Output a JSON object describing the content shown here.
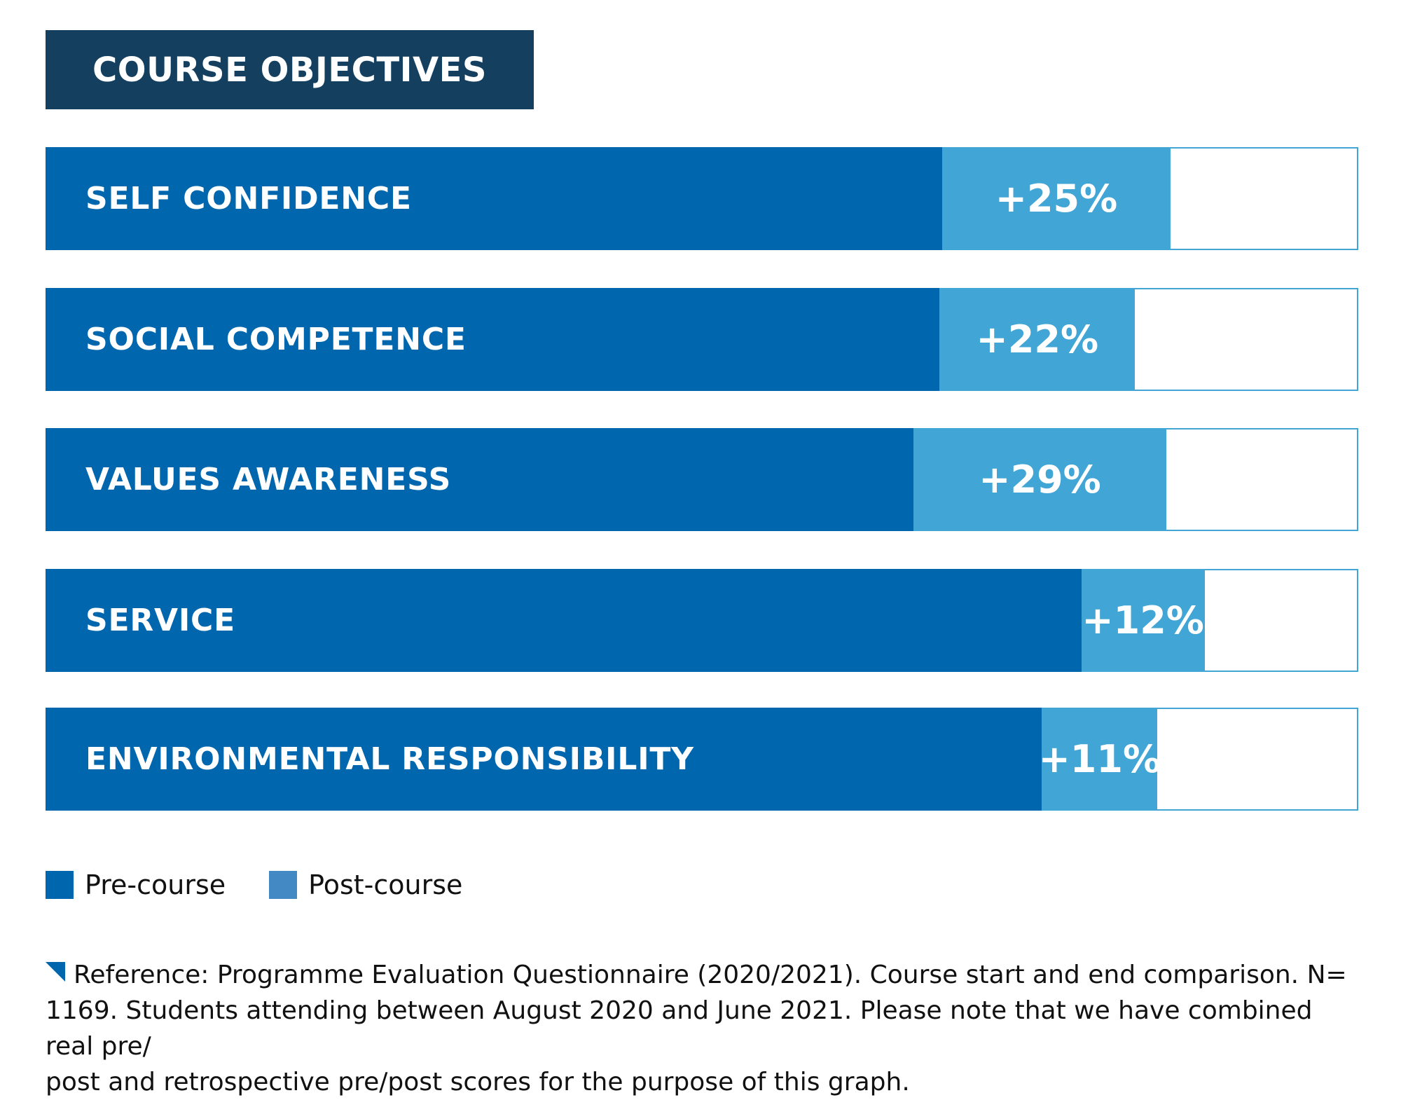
{
  "title": "COURSE OBJECTIVES",
  "colors": {
    "title_bg": "#143f5f",
    "pre_course": "#0066ad",
    "post_course": "#41a5d5",
    "legend_post_swatch": "#4389c4",
    "bar_outline": "#41a5d5"
  },
  "chart_data": {
    "type": "bar",
    "orientation": "horizontal",
    "stacked": true,
    "title": "COURSE OBJECTIVES",
    "categories": [
      "SELF CONFIDENCE",
      "SOCIAL COMPETENCE",
      "VALUES AWARENESS",
      "SERVICE",
      "ENVIRONMENTAL RESPONSIBILITY"
    ],
    "xlim": [
      0,
      1
    ],
    "series": [
      {
        "name": "Pre-course",
        "values": [
          0.683,
          0.681,
          0.661,
          0.789,
          0.759
        ]
      },
      {
        "name": "Post-course",
        "values": [
          0.857,
          0.83,
          0.854,
          0.883,
          0.847
        ]
      }
    ],
    "data_labels": [
      "+25%",
      "+22%",
      "+29%",
      "+12%",
      "+11%"
    ],
    "legend": {
      "position": "bottom-left",
      "entries": [
        "Pre-course",
        "Post-course"
      ]
    },
    "grid": false,
    "xlabel": "",
    "ylabel": ""
  },
  "footnote": {
    "lines": [
      "Reference: Programme Evaluation Questionnaire (2020/2021). Course start and end comparison. N=",
      "1169. Students attending between August 2020 and June 2021. Please note that we have combined real pre/",
      "post and retrospective pre/post scores for the purpose of this graph."
    ]
  }
}
